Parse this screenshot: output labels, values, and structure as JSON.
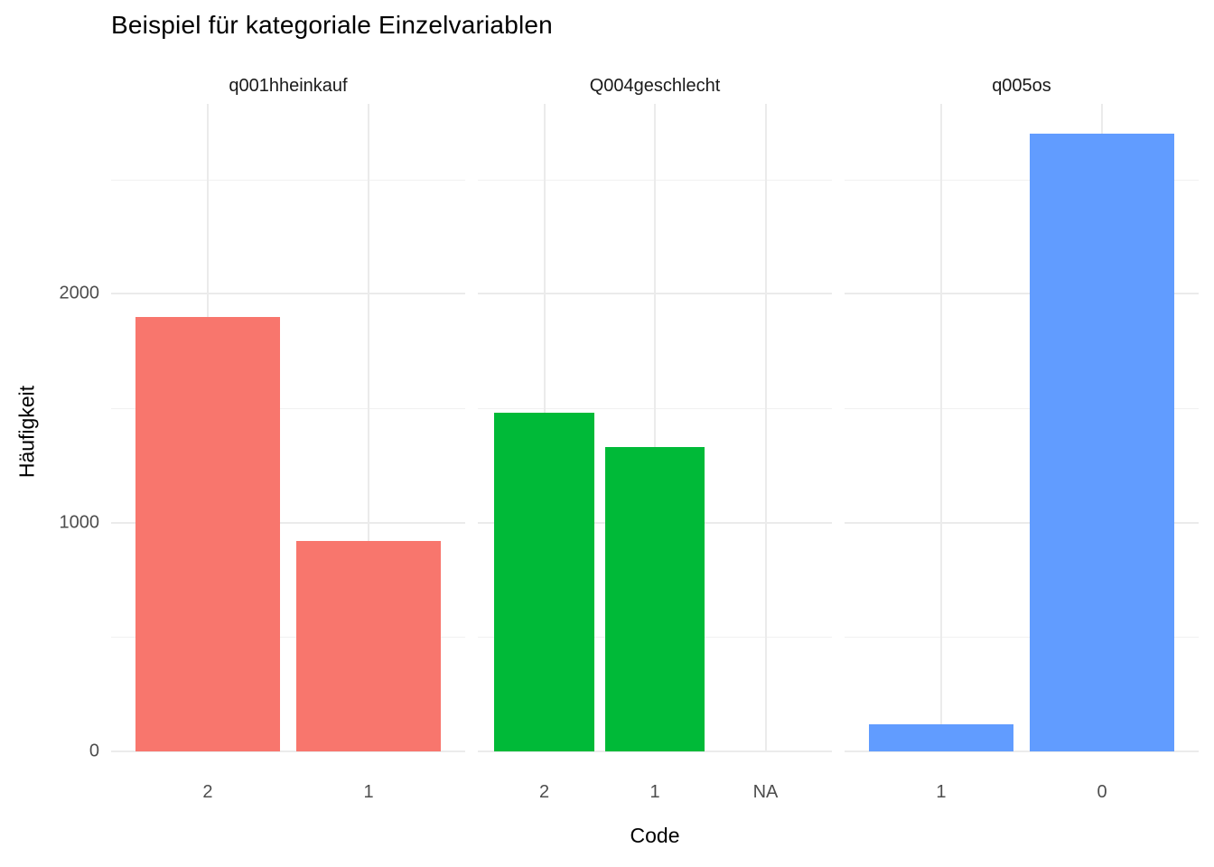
{
  "chart_data": {
    "type": "bar",
    "title": "Beispiel für kategoriale Einzelvariablen",
    "xlabel": "Code",
    "ylabel": "Häufigkeit",
    "ylim": [
      0,
      2830
    ],
    "y_ticks": [
      0,
      1000,
      2000
    ],
    "y_minor_ticks": [
      500,
      1500,
      2500
    ],
    "grid": true,
    "legend": "none",
    "facets": [
      {
        "label": "q001hheinkauf",
        "color": "#F8766D",
        "categories": [
          "2",
          "1"
        ],
        "values": [
          1900,
          920
        ]
      },
      {
        "label": "Q004geschlecht",
        "color": "#00BA38",
        "categories": [
          "2",
          "1",
          "NA"
        ],
        "values": [
          1480,
          1330,
          0
        ]
      },
      {
        "label": "q005os",
        "color": "#619CFF",
        "categories": [
          "1",
          "0"
        ],
        "values": [
          120,
          2700
        ]
      }
    ]
  }
}
